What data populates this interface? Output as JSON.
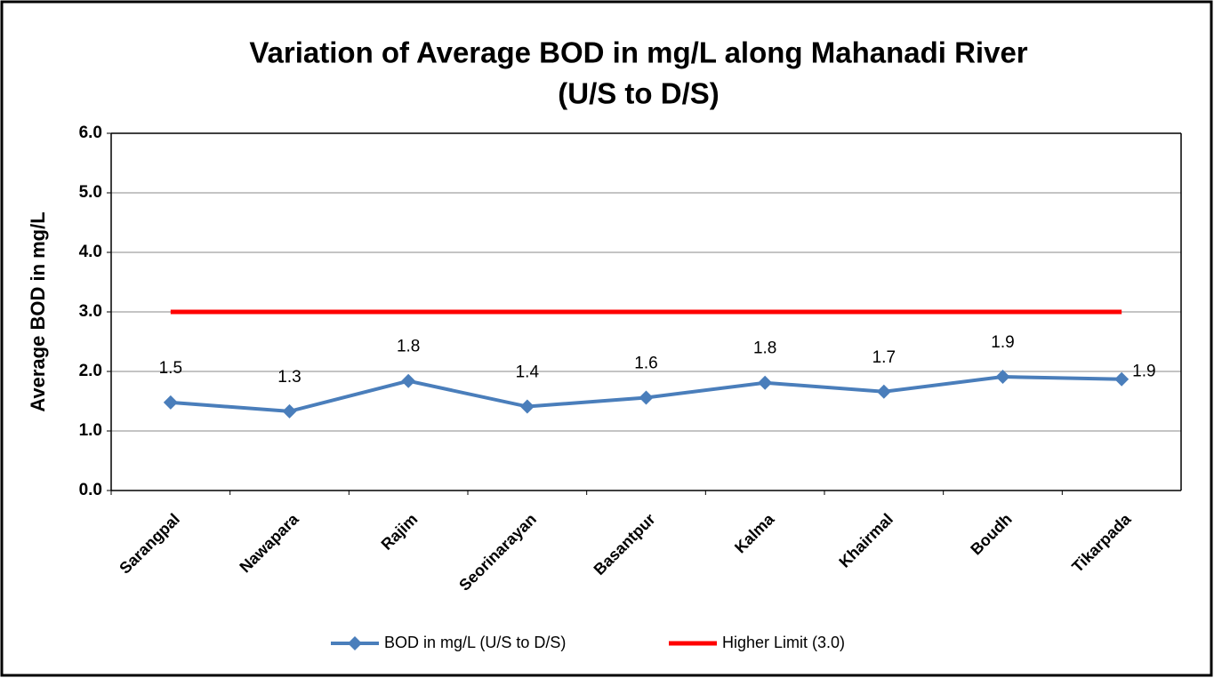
{
  "chart_data": {
    "type": "line",
    "title": [
      "Variation of Average BOD in mg/L  along  Mahanadi River",
      "(U/S to D/S)"
    ],
    "y_label": "Average BOD in mg/L",
    "categories": [
      "Sarangpal",
      "Nawapara",
      "Rajim",
      "Seorinarayan",
      "Basantpur",
      "Kalma",
      "Khairmal",
      "Boudh",
      "Tikarpada"
    ],
    "series": [
      {
        "name": "BOD in mg/L (U/S to D/S)",
        "color": "#4a7ebb",
        "marker": "diamond",
        "values": [
          1.48,
          1.33,
          1.84,
          1.41,
          1.56,
          1.81,
          1.66,
          1.91,
          1.87
        ],
        "value_labels": [
          "1.5",
          "1.3",
          "1.8",
          "1.4",
          "1.6",
          "1.8",
          "1.7",
          "1.9",
          "1.9"
        ]
      },
      {
        "name": "Higher Limit (3.0)",
        "color": "#ff0000",
        "values": [
          3,
          3,
          3,
          3,
          3,
          3,
          3,
          3,
          3
        ]
      }
    ],
    "ylim": [
      0,
      6
    ],
    "yticks": [
      {
        "value": 0,
        "label": "0.0"
      },
      {
        "value": 1,
        "label": "1.0"
      },
      {
        "value": 2,
        "label": "2.0"
      },
      {
        "value": 3,
        "label": "3.0"
      },
      {
        "value": 4,
        "label": "4.0"
      },
      {
        "value": 5,
        "label": "5.0"
      },
      {
        "value": 6,
        "label": "6.0"
      }
    ],
    "grid": true,
    "legend": "bottom"
  }
}
